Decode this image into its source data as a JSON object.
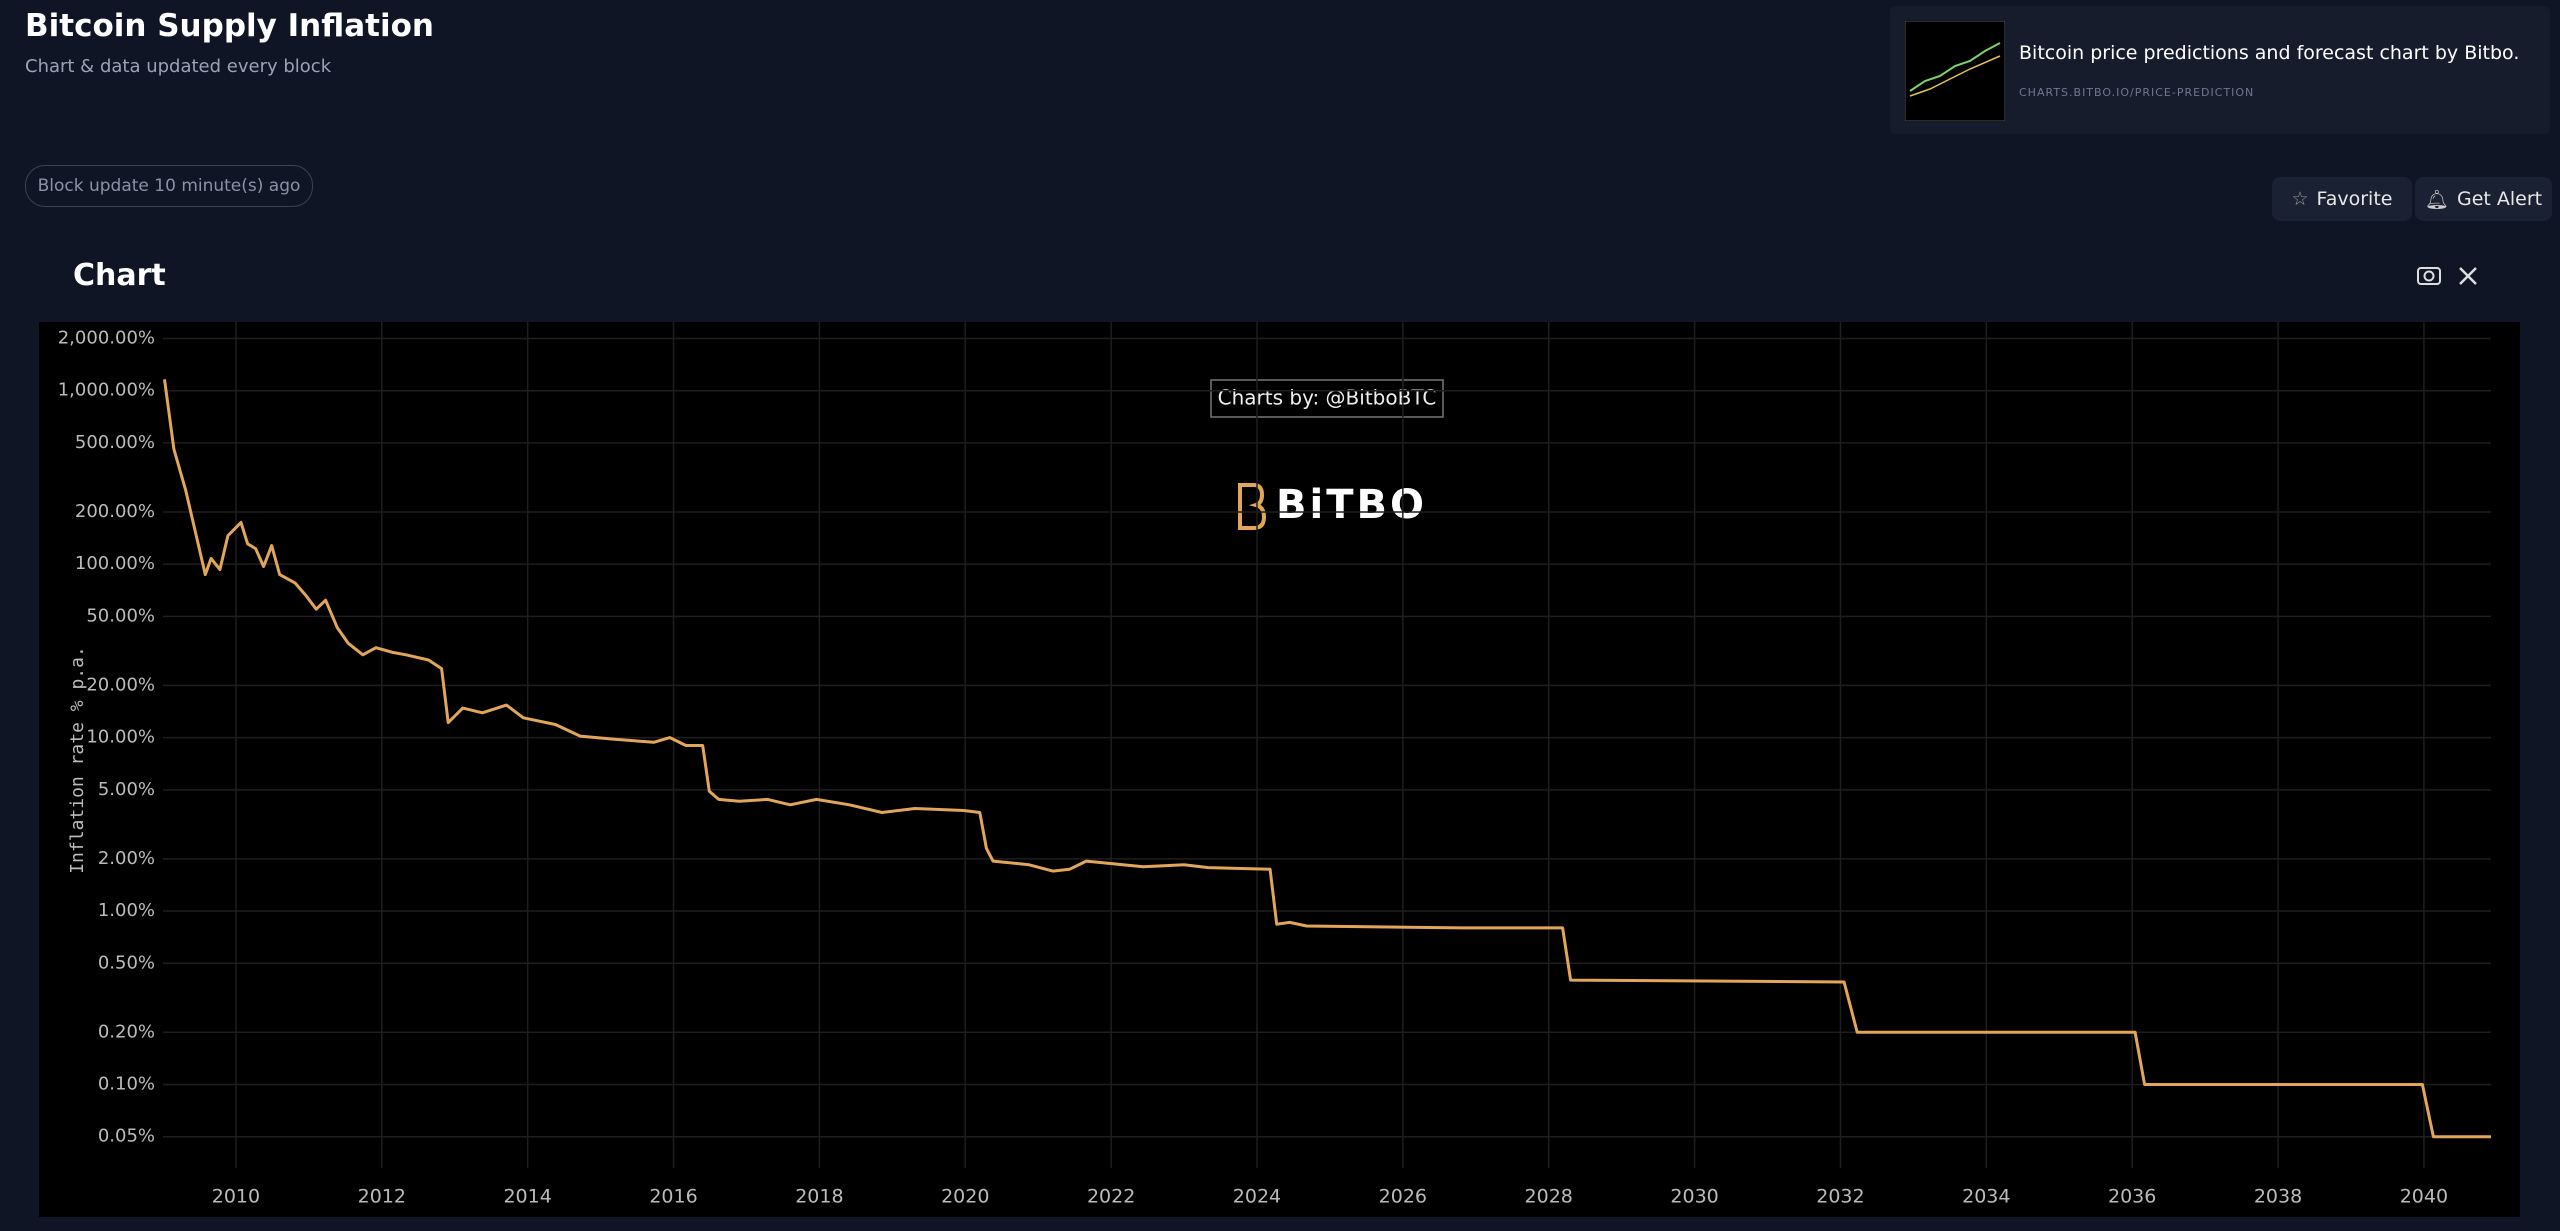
{
  "header": {
    "title": "Bitcoin Supply Inflation",
    "subtitle": "Chart & data updated every block",
    "block_update": "Block update 10 minute(s) ago"
  },
  "promo": {
    "title": "Bitcoin price predictions and forecast chart by Bitbo.",
    "url": "CHARTS.BITBO.IO/PRICE-PREDICTION"
  },
  "buttons": {
    "favorite": "Favorite",
    "get_alert": "Get Alert"
  },
  "section": {
    "heading": "Chart"
  },
  "chart_data": {
    "type": "line",
    "ylabel": "Inflation rate % p.a.",
    "annotation": "Charts by: @BitboBTC",
    "logo": "BiTBO",
    "color": "#e2a65a",
    "log_y": true,
    "grid": true,
    "xlim": [
      2009.0,
      2040.92
    ],
    "ylim": [
      0.033,
      2330
    ],
    "xticks": [
      2010,
      2012,
      2014,
      2016,
      2018,
      2020,
      2022,
      2024,
      2026,
      2028,
      2030,
      2032,
      2034,
      2036,
      2038,
      2040
    ],
    "yticks": [
      {
        "value": 0.05,
        "label": "0.05%"
      },
      {
        "value": 0.1,
        "label": "0.10%"
      },
      {
        "value": 0.2,
        "label": "0.20%"
      },
      {
        "value": 0.5,
        "label": "0.50%"
      },
      {
        "value": 1,
        "label": "1.00%"
      },
      {
        "value": 2,
        "label": "2.00%"
      },
      {
        "value": 5,
        "label": "5.00%"
      },
      {
        "value": 10,
        "label": "10.00%"
      },
      {
        "value": 20,
        "label": "20.00%"
      },
      {
        "value": 50,
        "label": "50.00%"
      },
      {
        "value": 100,
        "label": "100.00%"
      },
      {
        "value": 200,
        "label": "200.00%"
      },
      {
        "value": 500,
        "label": "500.00%"
      },
      {
        "value": 1000,
        "label": "1,000.00%"
      },
      {
        "value": 2000,
        "label": "2,000.00%"
      }
    ],
    "x": [
      2009.02,
      2009.15,
      2009.31,
      2009.44,
      2009.58,
      2009.66,
      2009.78,
      2009.89,
      2010.07,
      2010.16,
      2010.27,
      2010.38,
      2010.49,
      2010.6,
      2010.81,
      2010.96,
      2011.1,
      2011.23,
      2011.39,
      2011.54,
      2011.74,
      2011.92,
      2012.15,
      2012.33,
      2012.64,
      2012.82,
      2012.91,
      2013.11,
      2013.38,
      2013.71,
      2013.94,
      2014.38,
      2014.72,
      2015.17,
      2015.73,
      2015.95,
      2016.17,
      2016.4,
      2016.49,
      2016.62,
      2016.9,
      2017.29,
      2017.6,
      2017.96,
      2018.41,
      2018.86,
      2019.31,
      2019.98,
      2020.2,
      2020.29,
      2020.38,
      2020.87,
      2021.2,
      2021.43,
      2021.66,
      2022.44,
      2023.0,
      2023.33,
      2024.18,
      2024.27,
      2024.45,
      2024.68,
      2026.8,
      2028.19,
      2028.3,
      2032.05,
      2032.23,
      2036.04,
      2036.17,
      2039.98,
      2040.13,
      2040.92
    ],
    "values": [
      1164,
      460,
      268,
      156,
      87,
      108,
      93,
      146,
      174,
      131,
      123,
      97,
      128,
      87,
      78,
      66,
      55,
      62,
      43,
      35,
      30,
      33,
      31,
      30,
      28,
      25,
      12.2,
      14.8,
      13.9,
      15.4,
      13,
      11.9,
      10.2,
      9.8,
      9.4,
      10,
      9.0,
      9.0,
      4.9,
      4.4,
      4.3,
      4.4,
      4.1,
      4.4,
      4.1,
      3.7,
      3.9,
      3.8,
      3.7,
      2.3,
      1.94,
      1.85,
      1.7,
      1.74,
      1.94,
      1.8,
      1.85,
      1.78,
      1.74,
      0.84,
      0.86,
      0.82,
      0.8,
      0.8,
      0.4,
      0.39,
      0.2,
      0.2,
      0.1,
      0.1,
      0.05,
      0.05
    ]
  }
}
